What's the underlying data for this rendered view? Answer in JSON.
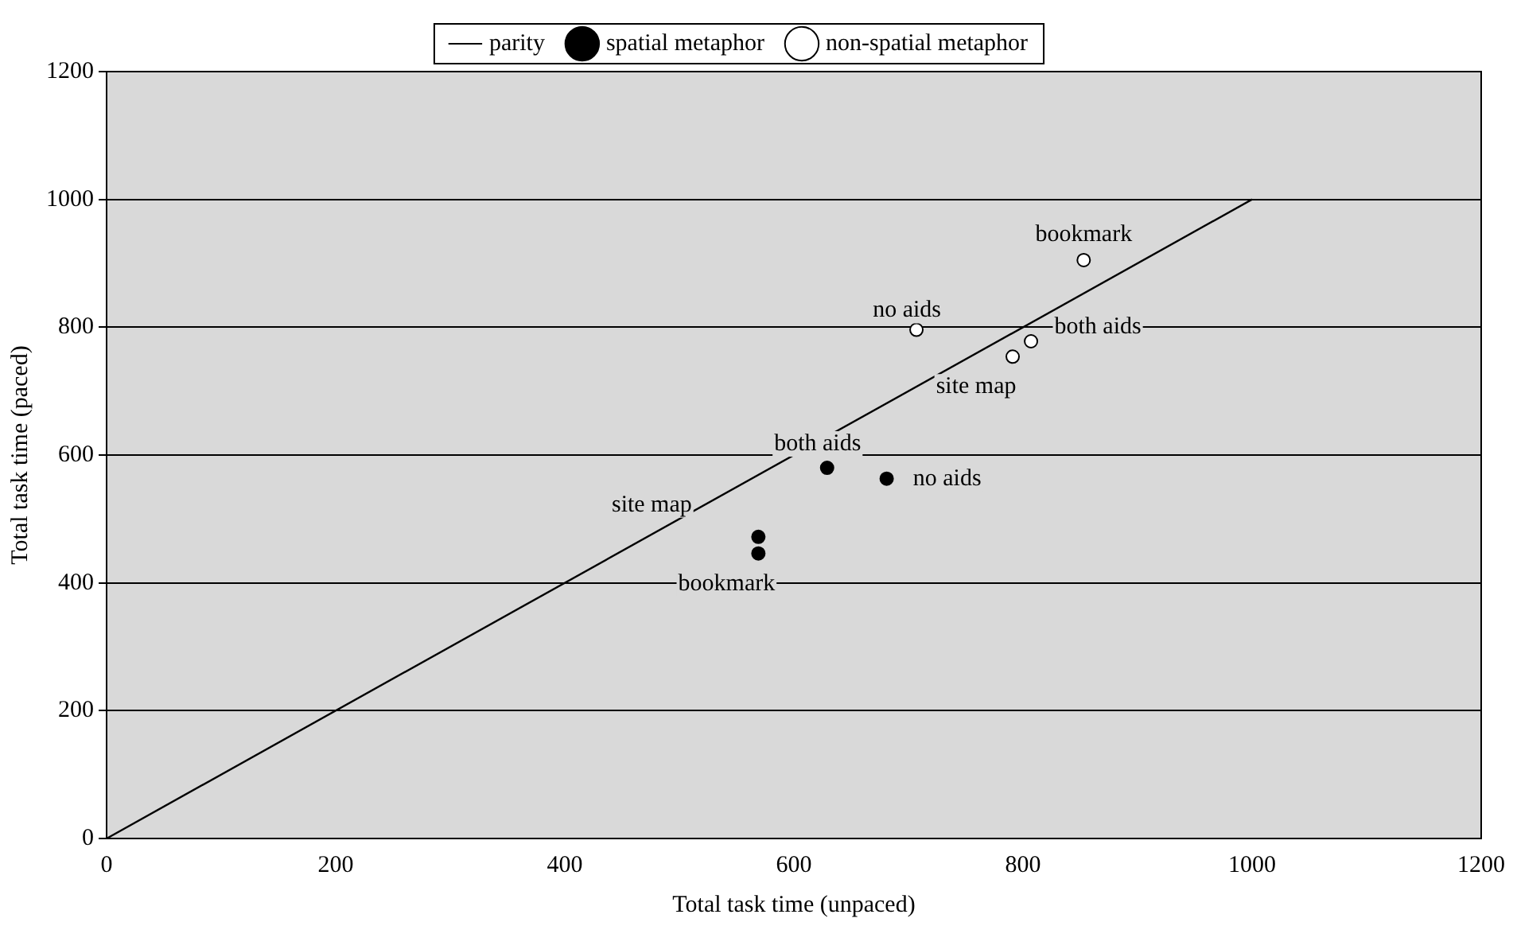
{
  "chart_data": {
    "type": "scatter",
    "xlabel": "Total task time (unpaced)",
    "ylabel": "Total task time (paced)",
    "xlim": [
      0,
      1200
    ],
    "xticks": [
      0,
      200,
      400,
      600,
      800,
      1000,
      1200
    ],
    "ylim": [
      0,
      1200
    ],
    "yticks": [
      0,
      200,
      400,
      600,
      800,
      1000,
      1200
    ],
    "grid": "y",
    "legend": "top",
    "marker": "circle",
    "series": [
      {
        "name": "parity",
        "type": "line",
        "color": "#000000",
        "x": [
          0,
          1000
        ],
        "values": [
          0,
          1000
        ],
        "marker": "none"
      },
      {
        "name": "spatial metaphor",
        "color": "#000000",
        "x": [
          569,
          569,
          629,
          681
        ],
        "values": [
          472,
          446,
          580,
          563
        ]
      },
      {
        "name": "non-spatial metaphor",
        "color": "#ffffff",
        "x": [
          707,
          791,
          807,
          853
        ],
        "values": [
          796,
          754,
          778,
          905
        ]
      }
    ],
    "annotations": [
      {
        "text": "site map",
        "x": 569,
        "y": 472
      },
      {
        "text": "bookmark",
        "x": 569,
        "y": 446
      },
      {
        "text": "both aids",
        "x": 629,
        "y": 580
      },
      {
        "text": "no aids",
        "x": 681,
        "y": 563
      },
      {
        "text": "no aids",
        "x": 707,
        "y": 796
      },
      {
        "text": "site map",
        "x": 791,
        "y": 754
      },
      {
        "text": "both aids",
        "x": 807,
        "y": 778
      },
      {
        "text": "bookmark",
        "x": 853,
        "y": 905
      }
    ]
  }
}
